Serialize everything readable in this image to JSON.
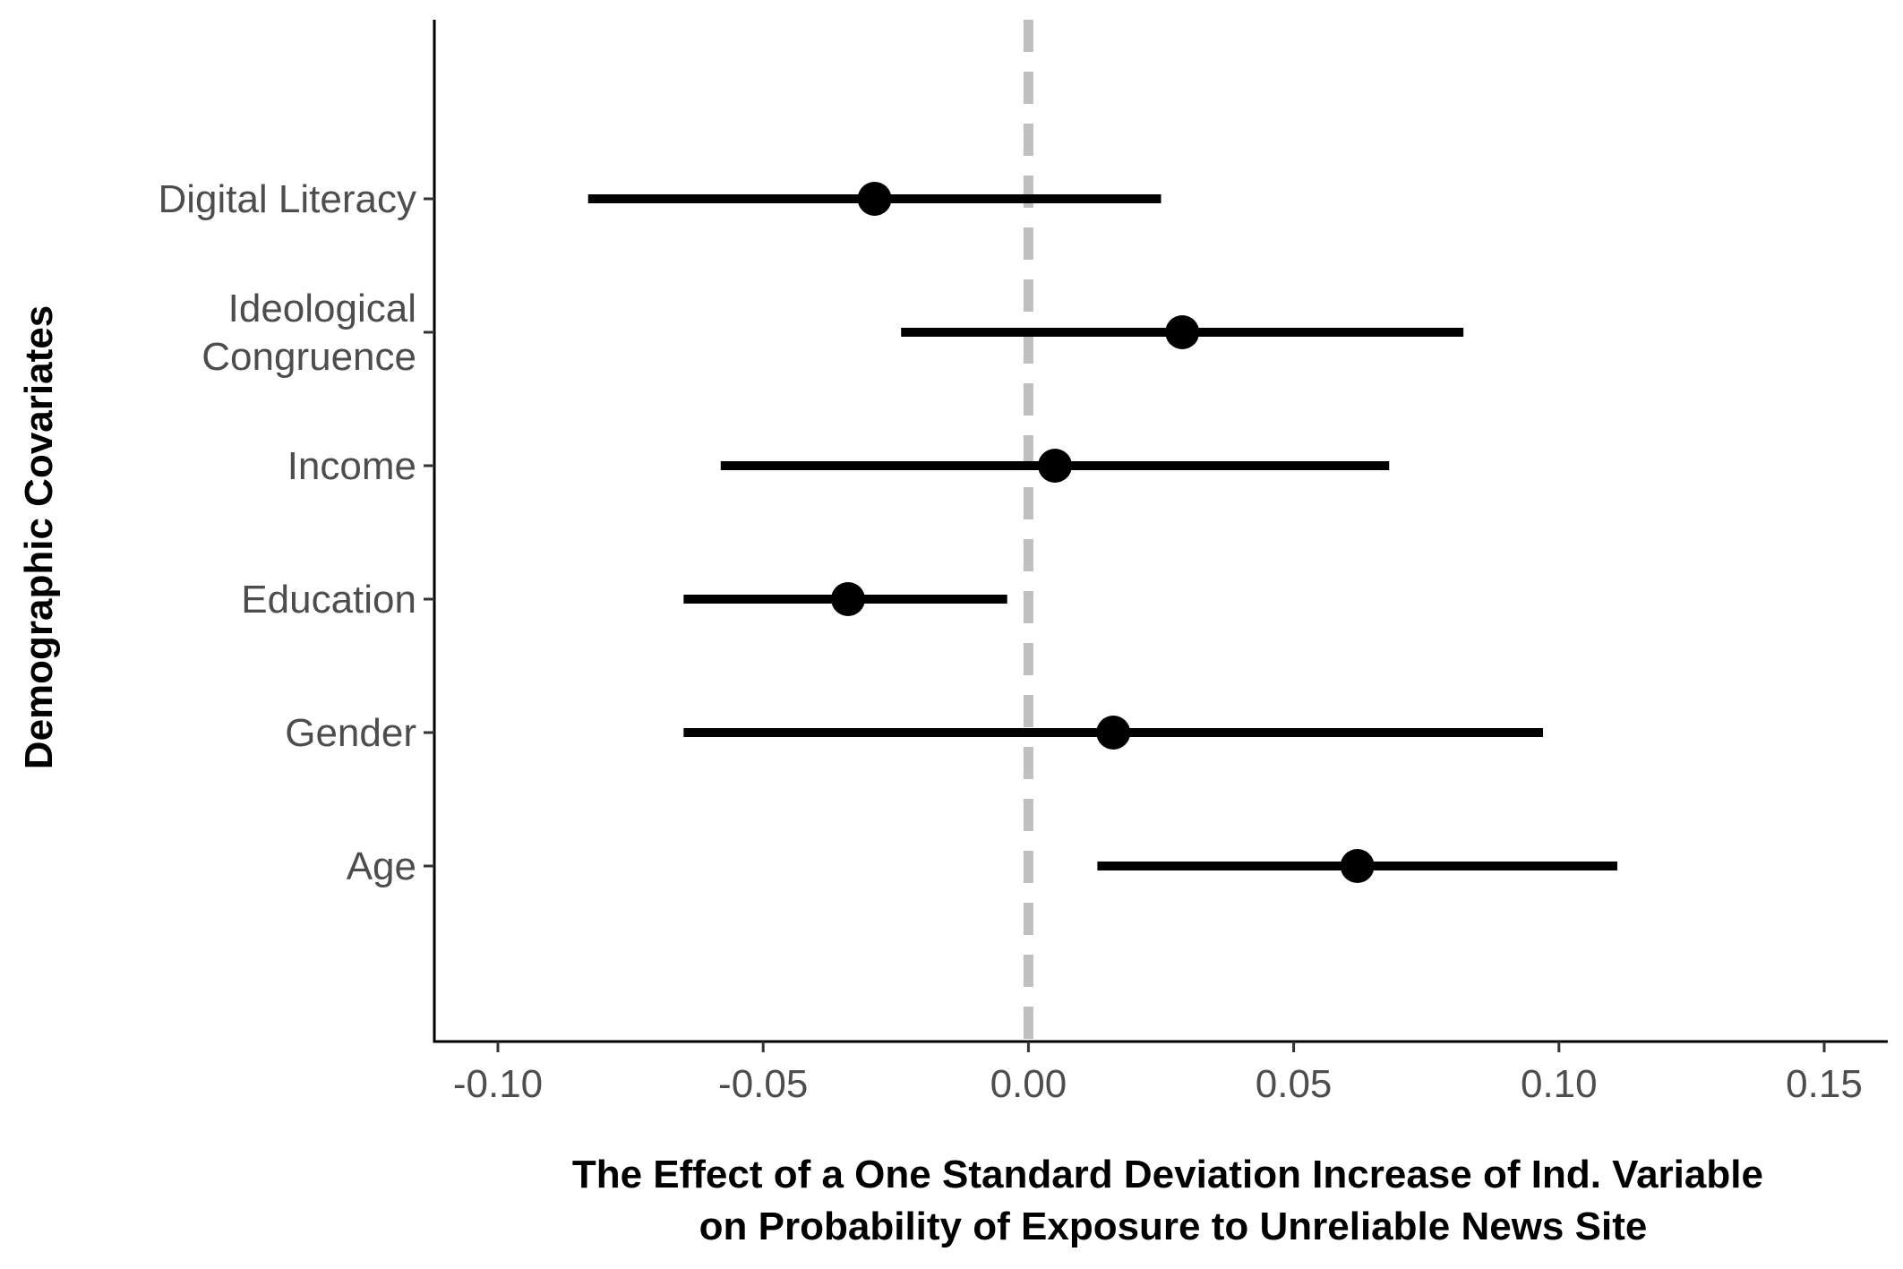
{
  "chart_data": {
    "type": "scatter",
    "subtype": "coefficient-plot",
    "title": "",
    "xlabel_lines": [
      "The Effect of a One Standard Deviation Increase of Ind. Variable",
      "on Probability of Exposure to Unreliable News Site"
    ],
    "ylabel": "Demographic Covariates",
    "xlim": [
      -0.112,
      0.162
    ],
    "x_ticks": [
      -0.1,
      -0.05,
      0.0,
      0.05,
      0.1,
      0.15
    ],
    "x_tick_labels": [
      "-0.10",
      "-0.05",
      "0.00",
      "0.05",
      "0.10",
      "0.15"
    ],
    "reference_line": {
      "x": 0.0,
      "style": "dashed",
      "color": "#bfbfbf"
    },
    "grid": false,
    "point_color": "#000000",
    "categories": [
      {
        "label_lines": [
          "Digital Literacy"
        ],
        "estimate": -0.029,
        "lower": -0.083,
        "upper": 0.025
      },
      {
        "label_lines": [
          "Ideological",
          "Congruence"
        ],
        "estimate": 0.029,
        "lower": -0.024,
        "upper": 0.082
      },
      {
        "label_lines": [
          "Income"
        ],
        "estimate": 0.005,
        "lower": -0.058,
        "upper": 0.068
      },
      {
        "label_lines": [
          "Education"
        ],
        "estimate": -0.034,
        "lower": -0.065,
        "upper": -0.004
      },
      {
        "label_lines": [
          "Gender"
        ],
        "estimate": 0.016,
        "lower": -0.065,
        "upper": 0.097
      },
      {
        "label_lines": [
          "Age"
        ],
        "estimate": 0.062,
        "lower": 0.013,
        "upper": 0.111
      }
    ]
  }
}
